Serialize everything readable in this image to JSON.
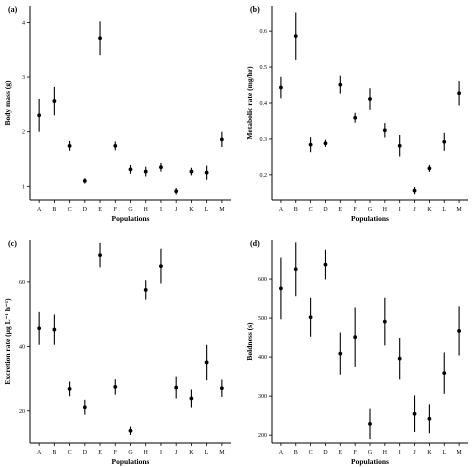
{
  "chart_data": [
    {
      "panel_label": "(a)",
      "type": "scatter",
      "xlabel": "Populations",
      "ylabel": "Body mass (g)",
      "categories": [
        "A",
        "B",
        "C",
        "D",
        "E",
        "F",
        "G",
        "H",
        "I",
        "J",
        "K",
        "L",
        "M"
      ],
      "ylim": [
        0.75,
        4.3
      ],
      "yticks": [
        1,
        2,
        3,
        4
      ],
      "ytick_labels": [
        "1",
        "2",
        "3",
        "4"
      ],
      "values": [
        2.3,
        2.56,
        1.74,
        1.1,
        3.71,
        1.74,
        1.31,
        1.27,
        1.35,
        0.91,
        1.27,
        1.25,
        1.86
      ],
      "lower": [
        2.0,
        2.3,
        1.65,
        1.05,
        3.4,
        1.66,
        1.23,
        1.18,
        1.27,
        0.85,
        1.2,
        1.12,
        1.72
      ],
      "upper": [
        2.6,
        2.82,
        1.83,
        1.15,
        4.02,
        1.82,
        1.39,
        1.36,
        1.43,
        0.97,
        1.34,
        1.38,
        2.0
      ]
    },
    {
      "panel_label": "(b)",
      "type": "scatter",
      "xlabel": "Populations",
      "ylabel": "Metabolic rate (mg/hr)",
      "categories": [
        "A",
        "B",
        "C",
        "D",
        "E",
        "F",
        "G",
        "H",
        "I",
        "J",
        "K",
        "L",
        "M"
      ],
      "ylim": [
        0.13,
        0.67
      ],
      "yticks": [
        0.2,
        0.3,
        0.4,
        0.5,
        0.6
      ],
      "ytick_labels": [
        "0.2",
        "0.3",
        "0.4",
        "0.5",
        "0.6"
      ],
      "values": [
        0.443,
        0.586,
        0.284,
        0.288,
        0.451,
        0.359,
        0.411,
        0.324,
        0.281,
        0.156,
        0.218,
        0.292,
        0.427
      ],
      "lower": [
        0.413,
        0.52,
        0.263,
        0.278,
        0.426,
        0.345,
        0.381,
        0.304,
        0.251,
        0.146,
        0.208,
        0.267,
        0.393
      ],
      "upper": [
        0.473,
        0.652,
        0.305,
        0.298,
        0.476,
        0.373,
        0.441,
        0.344,
        0.311,
        0.166,
        0.228,
        0.317,
        0.461
      ]
    },
    {
      "panel_label": "(c)",
      "type": "scatter",
      "xlabel": "Populations",
      "ylabel": "Excretion rate (µg L⁻¹ h⁻¹)",
      "categories": [
        "A",
        "B",
        "C",
        "D",
        "E",
        "F",
        "G",
        "H",
        "I",
        "J",
        "K",
        "L",
        "M"
      ],
      "ylim": [
        10,
        73
      ],
      "yticks": [
        20,
        40,
        60
      ],
      "ytick_labels": [
        "20",
        "40",
        "60"
      ],
      "values": [
        45.6,
        45.2,
        26.8,
        21.1,
        68.3,
        27.4,
        13.8,
        57.5,
        64.9,
        27.2,
        23.8,
        35.0,
        27.0
      ],
      "lower": [
        40.5,
        40.5,
        24.5,
        18.8,
        64.5,
        25.0,
        12.5,
        54.5,
        59.5,
        23.8,
        21.0,
        29.5,
        24.3
      ],
      "upper": [
        50.7,
        49.9,
        29.1,
        23.4,
        72.1,
        29.8,
        15.1,
        60.5,
        70.3,
        30.6,
        26.6,
        40.5,
        29.7
      ]
    },
    {
      "panel_label": "(d)",
      "type": "scatter",
      "xlabel": "Populations",
      "ylabel": "Boldness (s)",
      "categories": [
        "A",
        "B",
        "C",
        "D",
        "E",
        "F",
        "G",
        "H",
        "I",
        "J",
        "K",
        "L",
        "M"
      ],
      "ylim": [
        180,
        700
      ],
      "yticks": [
        200,
        300,
        400,
        500,
        600
      ],
      "ytick_labels": [
        "200",
        "300",
        "400",
        "500",
        "600"
      ],
      "values": [
        576,
        625,
        502,
        637,
        409,
        451,
        229,
        491,
        396,
        255,
        242,
        359,
        467
      ],
      "lower": [
        497,
        556,
        452,
        599,
        355,
        375,
        190,
        430,
        343,
        208,
        205,
        306,
        404
      ],
      "upper": [
        655,
        694,
        552,
        675,
        463,
        527,
        268,
        552,
        449,
        302,
        279,
        412,
        530
      ]
    }
  ]
}
